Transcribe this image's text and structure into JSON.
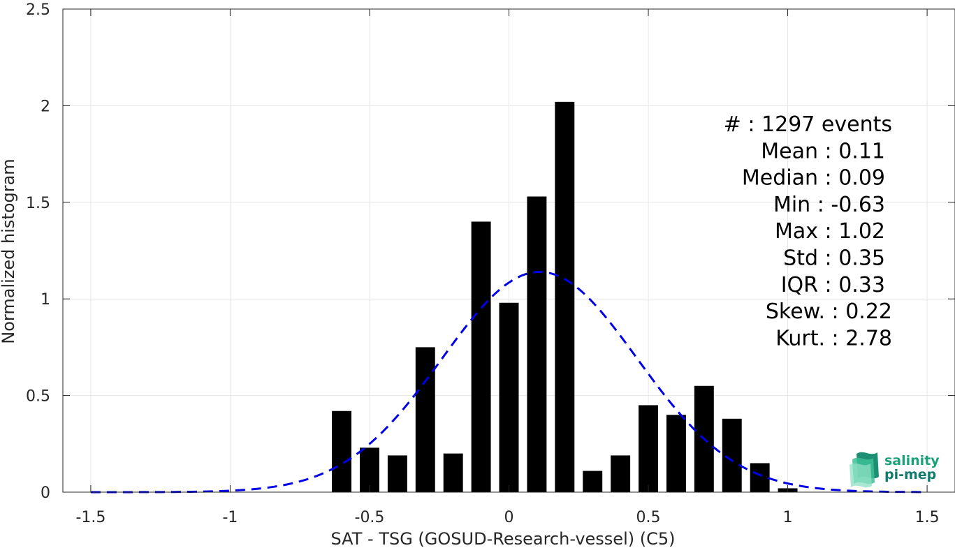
{
  "chart_data": {
    "type": "bar",
    "xlabel": "SAT - TSG (GOSUD-Research-vessel) (C5)",
    "ylabel": "Normalized histogram",
    "xlim": [
      -1.6,
      1.6
    ],
    "ylim": [
      0,
      2.5
    ],
    "xticks": [
      -1.5,
      -1,
      -0.5,
      0,
      0.5,
      1,
      1.5
    ],
    "xtick_labels": [
      "-1.5",
      "-1",
      "-0.5",
      "0",
      "0.5",
      "1",
      "1.5"
    ],
    "yticks": [
      0,
      0.5,
      1,
      1.5,
      2,
      2.5
    ],
    "ytick_labels": [
      "0",
      "0.5",
      "1",
      "1.5",
      "2",
      "2.5"
    ],
    "grid": true,
    "bars": [
      {
        "x": -0.6,
        "value": 0.42
      },
      {
        "x": -0.5,
        "value": 0.23
      },
      {
        "x": -0.4,
        "value": 0.19
      },
      {
        "x": -0.3,
        "value": 0.75
      },
      {
        "x": -0.2,
        "value": 0.2
      },
      {
        "x": -0.1,
        "value": 1.4
      },
      {
        "x": 0.0,
        "value": 0.98
      },
      {
        "x": 0.1,
        "value": 1.53
      },
      {
        "x": 0.2,
        "value": 2.02
      },
      {
        "x": 0.3,
        "value": 0.11
      },
      {
        "x": 0.4,
        "value": 0.19
      },
      {
        "x": 0.5,
        "value": 0.45
      },
      {
        "x": 0.6,
        "value": 0.4
      },
      {
        "x": 0.7,
        "value": 0.55
      },
      {
        "x": 0.8,
        "value": 0.38
      },
      {
        "x": 0.9,
        "value": 0.15
      },
      {
        "x": 1.0,
        "value": 0.02
      }
    ],
    "bar_width": 0.07,
    "bar_color": "#000000",
    "fit_curve": {
      "style": "dashed",
      "color": "#0000e6",
      "mean": 0.11,
      "std": 0.35,
      "x_range": [
        -1.5,
        1.5
      ]
    },
    "stats": [
      {
        "label": "#  : 1297 events"
      },
      {
        "label": "Mean : 0.11"
      },
      {
        "label": "Median : 0.09"
      },
      {
        "label": "Min : -0.63"
      },
      {
        "label": "Max : 1.02"
      },
      {
        "label": "Std : 0.35"
      },
      {
        "label": "IQR : 0.33"
      },
      {
        "label": "Skew. : 0.22"
      },
      {
        "label": "Kurt. : 2.78"
      }
    ]
  },
  "logo": {
    "line1": "salinity",
    "line2": "pi-mep",
    "color1": "#1aa37a",
    "color2": "#117a6a"
  }
}
